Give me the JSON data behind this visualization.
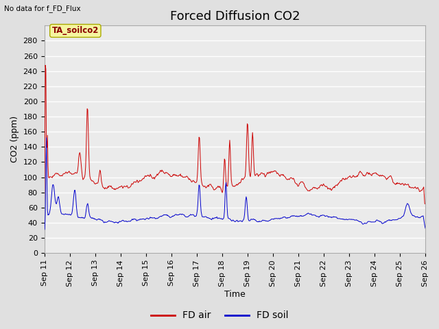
{
  "title": "Forced Diffusion CO2",
  "subtitle": "No data for f_FD_Flux",
  "ylabel": "CO2 (ppm)",
  "xlabel": "Time",
  "annotation": "TA_soilco2",
  "ylim": [
    0,
    300
  ],
  "yticks": [
    0,
    20,
    40,
    60,
    80,
    100,
    120,
    140,
    160,
    180,
    200,
    220,
    240,
    260,
    280
  ],
  "xtick_labels": [
    "Sep 11",
    "Sep 12",
    "Sep 13",
    "Sep 14",
    "Sep 15",
    "Sep 16",
    "Sep 17",
    "Sep 18",
    "Sep 19",
    "Sep 20",
    "Sep 21",
    "Sep 22",
    "Sep 23",
    "Sep 24",
    "Sep 25",
    "Sep 26"
  ],
  "fd_air_color": "#cc0000",
  "fd_soil_color": "#0000cc",
  "legend_fd_air": "FD air",
  "legend_fd_soil": "FD soil",
  "bg_color": "#e0e0e0",
  "plot_bg_color": "#ebebeb",
  "grid_color": "#ffffff",
  "title_fontsize": 13,
  "label_fontsize": 9,
  "tick_fontsize": 8
}
